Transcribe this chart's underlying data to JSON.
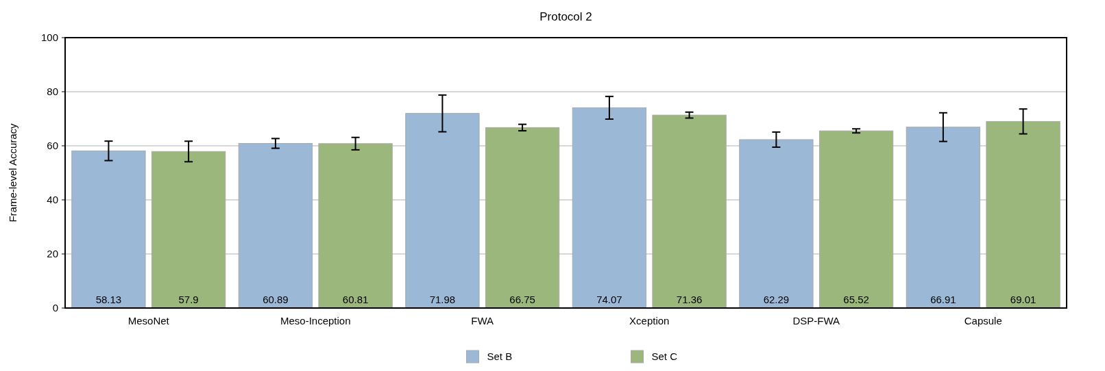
{
  "chart_data": {
    "type": "bar",
    "title": "Protocol 2",
    "ylabel": "Frame-level Accuracy",
    "categories": [
      "MesoNet",
      "Meso-Inception",
      "FWA",
      "Xception",
      "DSP-FWA",
      "Capsule"
    ],
    "series": [
      {
        "name": "Set B",
        "color": "#9cb8d7",
        "values": [
          58.13,
          60.89,
          71.98,
          74.07,
          62.29,
          66.91
        ],
        "errors": [
          3.6,
          1.8,
          6.8,
          4.2,
          2.8,
          5.3
        ]
      },
      {
        "name": "Set C",
        "color": "#9bb77c",
        "values": [
          57.9,
          60.81,
          66.75,
          71.36,
          65.52,
          69.01
        ],
        "errors": [
          3.8,
          2.3,
          1.2,
          1.1,
          0.75,
          4.6
        ]
      }
    ],
    "ylim": [
      0,
      100
    ],
    "yticks": [
      0,
      20,
      40,
      60,
      80,
      100
    ],
    "grid": "y",
    "legend": "bottom",
    "data_labels": true
  }
}
